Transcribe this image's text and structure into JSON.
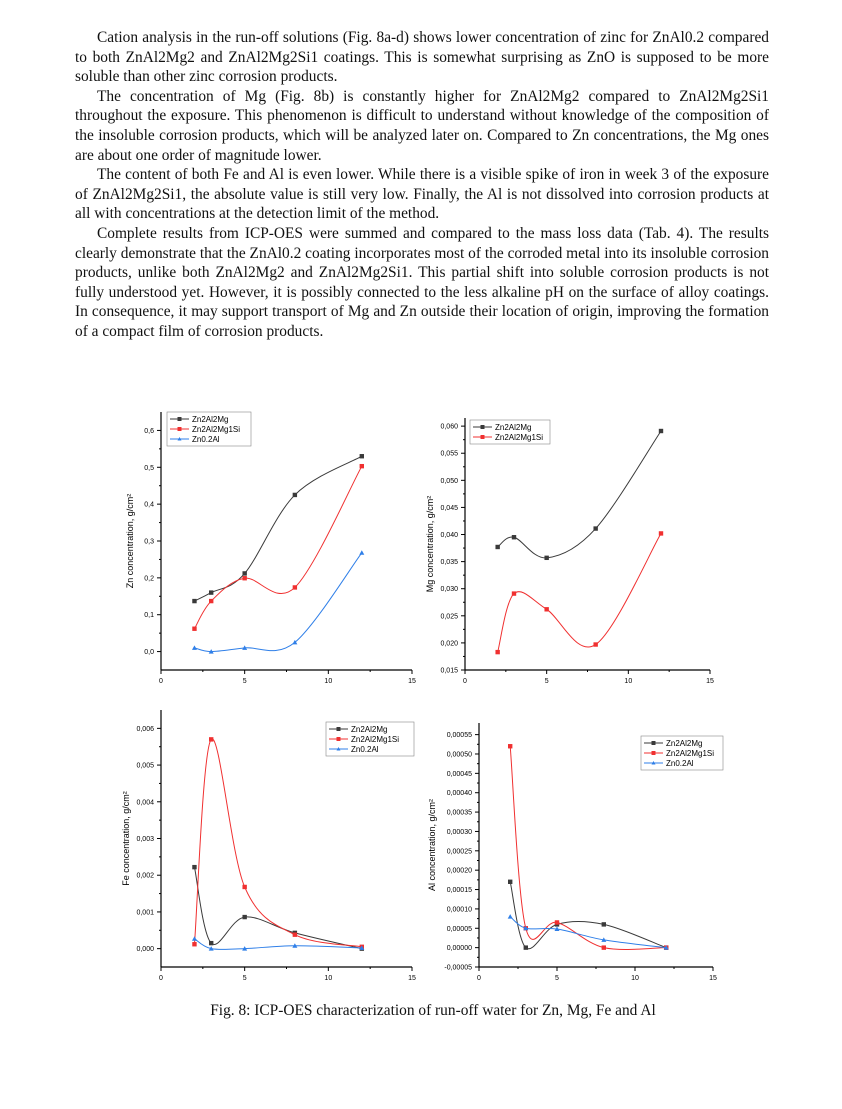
{
  "paragraphs": [
    "Cation analysis in the run-off solutions (Fig. 8a-d) shows lower concentration of zinc for ZnAl0.2 compared to both ZnAl2Mg2 and ZnAl2Mg2Si1 coatings. This is somewhat surprising as ZnO is supposed to be more soluble than other zinc corrosion products.",
    "The concentration of Mg (Fig. 8b) is constantly higher for ZnAl2Mg2 compared to ZnAl2Mg2Si1 throughout the exposure. This phenomenon is difficult to understand without knowledge of the composition of the insoluble corrosion products, which will be analyzed later on. Compared to Zn concentrations, the Mg ones are about one order of magnitude lower.",
    "The content of both Fe and Al is even lower. While there is a visible spike of iron in week 3 of the exposure of ZnAl2Mg2Si1, the absolute value is still very low. Finally, the Al is not dissolved into corrosion products at all with concentrations at the detection limit of the method.",
    "Complete results from ICP-OES were summed and compared to the mass loss data (Tab. 4). The results clearly demonstrate that the ZnAl0.2 coating incorporates most of the corroded metal into its insoluble corrosion products, unlike both ZnAl2Mg2 and ZnAl2Mg2Si1. This partial shift into soluble corrosion products is not fully understood yet. However, it is possibly connected to the less alkaline pH on the surface of alloy coatings. In consequence, it may support transport of Mg and Zn outside their location of origin, improving the formation of a compact film of corrosion products."
  ],
  "caption": "Fig. 8: ICP-OES characterization of run-off water for Zn, Mg, Fe and Al",
  "colors": {
    "Zn2Al2Mg": "#3a3a3a",
    "Zn2Al2Mg1Si": "#f03030",
    "Zn0.2Al": "#2f7fe8"
  },
  "chart_data": [
    {
      "type": "line",
      "id": "zn",
      "ylabel": "Zn concentration, g/cm²",
      "xlabel": "",
      "xlim": [
        0,
        15
      ],
      "ylim": [
        -0.05,
        0.65
      ],
      "xticks": [
        0,
        5,
        10,
        15
      ],
      "xtick_labels": [
        "0",
        "5",
        "10",
        "15"
      ],
      "yticks": [
        0,
        0.1,
        0.2,
        0.3,
        0.4,
        0.5,
        0.6
      ],
      "ytick_labels": [
        "0,0",
        "0,1",
        "0,2",
        "0,3",
        "0,4",
        "0,5",
        "0,6"
      ],
      "legend": "top-left",
      "x": [
        2,
        3,
        5,
        8,
        12
      ],
      "series": [
        {
          "name": "Zn2Al2Mg",
          "marker": "square",
          "values": [
            0.137,
            0.16,
            0.212,
            0.425,
            0.53
          ]
        },
        {
          "name": "Zn2Al2Mg1Si",
          "marker": "square",
          "values": [
            0.062,
            0.137,
            0.199,
            0.174,
            0.503
          ]
        },
        {
          "name": "Zn0.2Al",
          "marker": "triangle",
          "values": [
            0.01,
            0.0,
            0.01,
            0.025,
            0.268
          ]
        }
      ]
    },
    {
      "type": "line",
      "id": "mg",
      "ylabel": "Mg concentration, g/cm²",
      "xlabel": "",
      "xlim": [
        0,
        15
      ],
      "ylim": [
        0.015,
        0.0615
      ],
      "xticks": [
        0,
        5,
        10,
        15
      ],
      "xtick_labels": [
        "0",
        "5",
        "10",
        "15"
      ],
      "yticks": [
        0.015,
        0.02,
        0.025,
        0.03,
        0.035,
        0.04,
        0.045,
        0.05,
        0.055,
        0.06
      ],
      "ytick_labels": [
        "0,015",
        "0,020",
        "0,025",
        "0,030",
        "0,035",
        "0,040",
        "0,045",
        "0,050",
        "0,055",
        "0,060"
      ],
      "legend": "top-left",
      "x": [
        2,
        3,
        5,
        8,
        12
      ],
      "series": [
        {
          "name": "Zn2Al2Mg",
          "marker": "square",
          "values": [
            0.0377,
            0.0395,
            0.0357,
            0.0411,
            0.0591
          ]
        },
        {
          "name": "Zn2Al2Mg1Si",
          "marker": "square",
          "values": [
            0.0183,
            0.0291,
            0.0262,
            0.0197,
            0.0402
          ]
        }
      ]
    },
    {
      "type": "line",
      "id": "fe",
      "ylabel": "Fe concentration, g/cm²",
      "xlabel": "",
      "xlim": [
        0,
        15
      ],
      "ylim": [
        -0.0005,
        0.0065
      ],
      "xticks": [
        0,
        5,
        10,
        15
      ],
      "xtick_labels": [
        "0",
        "5",
        "10",
        "15"
      ],
      "yticks": [
        0,
        0.001,
        0.002,
        0.003,
        0.004,
        0.005,
        0.006
      ],
      "ytick_labels": [
        "0,000",
        "0,001",
        "0,002",
        "0,003",
        "0,004",
        "0,005",
        "0,006"
      ],
      "legend": "top-right",
      "x": [
        2,
        3,
        5,
        8,
        12
      ],
      "series": [
        {
          "name": "Zn2Al2Mg",
          "marker": "square",
          "values": [
            0.00222,
            0.00015,
            0.00086,
            0.00043,
            0.0
          ]
        },
        {
          "name": "Zn2Al2Mg1Si",
          "marker": "square",
          "values": [
            0.00012,
            0.0057,
            0.00168,
            0.00038,
            5e-05
          ]
        },
        {
          "name": "Zn0.2Al",
          "marker": "triangle",
          "values": [
            0.00027,
            0.0,
            0.0,
            8e-05,
            2e-05
          ]
        }
      ]
    },
    {
      "type": "line",
      "id": "al",
      "ylabel": "Al concentration, g/cm²",
      "xlabel": "",
      "xlim": [
        0,
        15
      ],
      "ylim": [
        -5e-05,
        0.00058
      ],
      "xticks": [
        0,
        5,
        10,
        15
      ],
      "xtick_labels": [
        "0",
        "5",
        "10",
        "15"
      ],
      "yticks": [
        -5e-05,
        0,
        5e-05,
        0.0001,
        0.00015,
        0.0002,
        0.00025,
        0.0003,
        0.00035,
        0.0004,
        0.00045,
        0.0005,
        0.00055
      ],
      "ytick_labels": [
        "-0,00005",
        "0,00000",
        "0,00005",
        "0,00010",
        "0,00015",
        "0,00020",
        "0,00025",
        "0,00030",
        "0,00035",
        "0,00040",
        "0,00045",
        "0,00050",
        "0,00055"
      ],
      "legend": "top-right",
      "x": [
        2,
        3,
        5,
        8,
        12
      ],
      "series": [
        {
          "name": "Zn2Al2Mg",
          "marker": "square",
          "values": [
            0.00017,
            0.0,
            6e-05,
            6e-05,
            0.0
          ]
        },
        {
          "name": "Zn2Al2Mg1Si",
          "marker": "square",
          "values": [
            0.00052,
            5e-05,
            6.5e-05,
            0.0,
            0.0
          ]
        },
        {
          "name": "Zn0.2Al",
          "marker": "triangle",
          "values": [
            8e-05,
            5e-05,
            4.8e-05,
            2e-05,
            0.0
          ]
        }
      ]
    }
  ]
}
